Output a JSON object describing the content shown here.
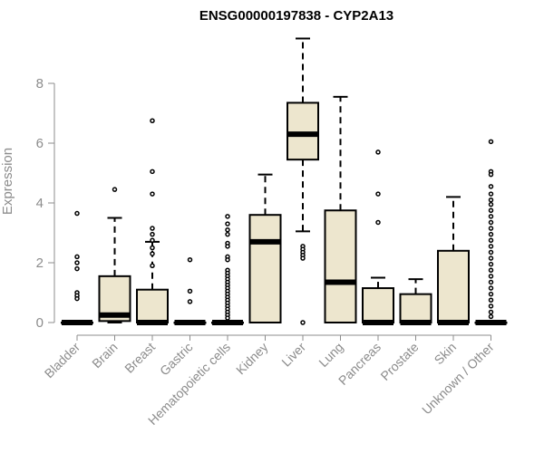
{
  "chart_data": {
    "type": "boxplot",
    "title": "ENSG00000197838 - CYP2A13",
    "xlabel": "",
    "ylabel": "Expression",
    "ylim": [
      0,
      9.5
    ],
    "yticks": [
      0,
      2,
      4,
      6,
      8
    ],
    "grid": false,
    "colors": {
      "box_fill": "#ede6ce",
      "stroke": "#000000",
      "axis": "#8c8c8c"
    },
    "categories": [
      "Bladder",
      "Brain",
      "Breast",
      "Gastric",
      "Hematopoietic cells",
      "Kidney",
      "Liver",
      "Lung",
      "Pancreas",
      "Prostate",
      "Skin",
      "Unknown / Other"
    ],
    "boxes": [
      {
        "min": 0,
        "q1": 0,
        "median": 0,
        "q3": 0,
        "max": 0,
        "outliers": [
          3.65,
          2.2,
          2.0,
          1.8,
          1.0,
          0.9,
          0.8
        ]
      },
      {
        "min": 0,
        "q1": 0.05,
        "median": 0.25,
        "q3": 1.55,
        "max": 3.5,
        "outliers": [
          4.45
        ]
      },
      {
        "min": 0,
        "q1": 0,
        "median": 0,
        "q3": 1.1,
        "max": 2.7,
        "outliers": [
          6.75,
          5.05,
          4.3,
          3.15,
          2.95,
          2.75,
          2.5,
          2.3,
          1.9
        ]
      },
      {
        "min": 0,
        "q1": 0,
        "median": 0,
        "q3": 0,
        "max": 0,
        "outliers": [
          2.1,
          1.05,
          0.7
        ]
      },
      {
        "min": 0,
        "q1": 0,
        "median": 0,
        "q3": 0,
        "max": 0,
        "outliers": [
          3.55,
          3.3,
          3.1,
          2.95,
          2.65,
          2.55,
          2.2,
          2.1,
          1.75,
          1.65,
          1.55,
          1.45,
          1.35,
          1.25,
          1.15,
          1.05,
          0.95,
          0.85,
          0.75,
          0.65,
          0.55,
          0.45,
          0.35,
          0.25,
          0.15
        ]
      },
      {
        "min": 0,
        "q1": 0,
        "median": 2.7,
        "q3": 3.6,
        "max": 4.95,
        "outliers": []
      },
      {
        "min": 3.05,
        "q1": 5.45,
        "median": 6.3,
        "q3": 7.35,
        "max": 9.5,
        "outliers": [
          2.55,
          2.45,
          2.35,
          2.25,
          2.15,
          0
        ]
      },
      {
        "min": 0,
        "q1": 0,
        "median": 1.35,
        "q3": 3.75,
        "max": 7.55,
        "outliers": []
      },
      {
        "min": 0,
        "q1": 0,
        "median": 0,
        "q3": 1.15,
        "max": 1.5,
        "outliers": [
          5.7,
          4.3,
          3.35
        ]
      },
      {
        "min": 0,
        "q1": 0,
        "median": 0,
        "q3": 0.95,
        "max": 1.45,
        "outliers": []
      },
      {
        "min": 0,
        "q1": 0,
        "median": 0,
        "q3": 2.4,
        "max": 4.2,
        "outliers": []
      },
      {
        "min": 0,
        "q1": 0,
        "median": 0,
        "q3": 0,
        "max": 0,
        "outliers": [
          6.05,
          5.05,
          4.95,
          4.55,
          4.3,
          4.1,
          3.95,
          3.75,
          3.55,
          3.35,
          3.15,
          2.95,
          2.75,
          2.55,
          2.35,
          2.15,
          1.95,
          1.75,
          1.55,
          1.35,
          1.15,
          0.95,
          0.75,
          0.55,
          0.35,
          0.2
        ]
      }
    ]
  }
}
